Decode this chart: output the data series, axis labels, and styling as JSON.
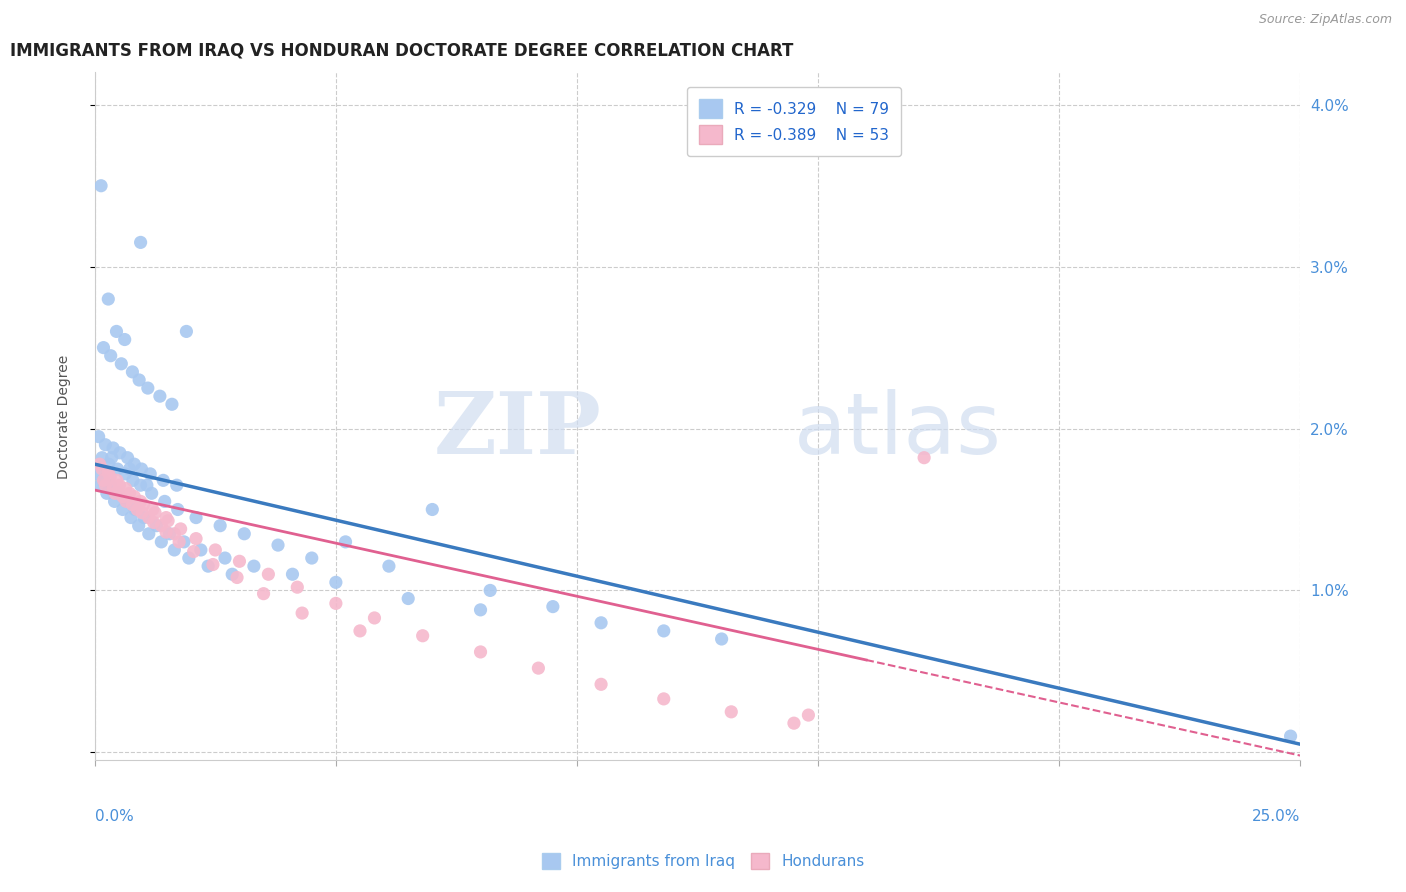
{
  "title": "IMMIGRANTS FROM IRAQ VS HONDURAN DOCTORATE DEGREE CORRELATION CHART",
  "source": "Source: ZipAtlas.com",
  "ylabel": "Doctorate Degree",
  "legend_iraq_label": "Immigrants from Iraq",
  "legend_honduran_label": "Hondurans",
  "iraq_R": "R = -0.329",
  "iraq_N": "N = 79",
  "honduran_R": "R = -0.389",
  "honduran_N": "N = 53",
  "iraq_color": "#a8c8f0",
  "iraq_line_color": "#3a7abf",
  "honduran_color": "#f5b8cc",
  "honduran_line_color": "#e06090",
  "xmin": 0.0,
  "xmax": 25.0,
  "ymin": -0.05,
  "ymax": 4.2,
  "watermark_zip": "ZIP",
  "watermark_atlas": "atlas",
  "iraq_x": [
    0.13,
    0.95,
    0.28,
    0.45,
    0.62,
    0.18,
    0.33,
    0.55,
    0.78,
    0.92,
    1.1,
    1.35,
    1.6,
    0.08,
    0.22,
    0.38,
    0.52,
    0.68,
    0.82,
    0.97,
    1.15,
    1.42,
    1.7,
    0.15,
    0.29,
    0.47,
    0.63,
    0.79,
    0.95,
    1.18,
    1.45,
    1.72,
    2.1,
    2.6,
    3.1,
    3.8,
    4.5,
    5.2,
    6.1,
    7.0,
    8.2,
    9.5,
    10.5,
    11.8,
    13.0,
    0.05,
    0.18,
    0.32,
    0.49,
    0.66,
    0.83,
    1.02,
    1.28,
    1.55,
    1.85,
    2.2,
    2.7,
    3.3,
    4.1,
    5.0,
    6.5,
    8.0,
    0.12,
    0.25,
    0.41,
    0.58,
    0.75,
    0.91,
    1.12,
    1.38,
    1.65,
    1.95,
    2.35,
    2.85,
    0.35,
    0.72,
    1.08,
    24.8,
    1.9
  ],
  "iraq_y": [
    3.5,
    3.15,
    2.8,
    2.6,
    2.55,
    2.5,
    2.45,
    2.4,
    2.35,
    2.3,
    2.25,
    2.2,
    2.15,
    1.95,
    1.9,
    1.88,
    1.85,
    1.82,
    1.78,
    1.75,
    1.72,
    1.68,
    1.65,
    1.82,
    1.78,
    1.75,
    1.72,
    1.68,
    1.65,
    1.6,
    1.55,
    1.5,
    1.45,
    1.4,
    1.35,
    1.28,
    1.2,
    1.3,
    1.15,
    1.5,
    1.0,
    0.9,
    0.8,
    0.75,
    0.7,
    1.72,
    1.68,
    1.65,
    1.6,
    1.55,
    1.5,
    1.45,
    1.4,
    1.35,
    1.3,
    1.25,
    1.2,
    1.15,
    1.1,
    1.05,
    0.95,
    0.88,
    1.65,
    1.6,
    1.55,
    1.5,
    1.45,
    1.4,
    1.35,
    1.3,
    1.25,
    1.2,
    1.15,
    1.1,
    1.82,
    1.75,
    1.65,
    0.1,
    2.6
  ],
  "honduran_x": [
    0.15,
    0.32,
    0.51,
    0.72,
    0.95,
    1.2,
    1.48,
    0.22,
    0.42,
    0.65,
    0.88,
    1.12,
    1.38,
    1.65,
    0.1,
    0.28,
    0.46,
    0.64,
    0.82,
    1.01,
    1.25,
    1.52,
    1.78,
    2.1,
    2.5,
    3.0,
    3.6,
    4.2,
    5.0,
    5.8,
    6.8,
    8.0,
    9.2,
    10.5,
    11.8,
    13.2,
    14.5,
    0.18,
    0.38,
    0.58,
    0.78,
    0.98,
    1.22,
    1.48,
    1.75,
    2.05,
    2.45,
    2.95,
    3.5,
    4.3,
    5.5,
    14.8,
    17.2
  ],
  "honduran_y": [
    1.75,
    1.7,
    1.65,
    1.6,
    1.55,
    1.5,
    1.45,
    1.65,
    1.6,
    1.55,
    1.5,
    1.45,
    1.4,
    1.35,
    1.78,
    1.73,
    1.68,
    1.63,
    1.58,
    1.53,
    1.48,
    1.43,
    1.38,
    1.32,
    1.25,
    1.18,
    1.1,
    1.02,
    0.92,
    0.83,
    0.72,
    0.62,
    0.52,
    0.42,
    0.33,
    0.25,
    0.18,
    1.68,
    1.63,
    1.58,
    1.53,
    1.48,
    1.42,
    1.36,
    1.3,
    1.24,
    1.16,
    1.08,
    0.98,
    0.86,
    0.75,
    0.23,
    1.82
  ],
  "iraq_line_start_x": 0.0,
  "iraq_line_start_y": 1.78,
  "iraq_line_end_x": 25.0,
  "iraq_line_end_y": 0.05,
  "hon_line_start_x": 0.0,
  "hon_line_start_y": 1.62,
  "hon_line_end_x": 25.0,
  "hon_line_end_y": -0.02,
  "hon_solid_end_x": 16.0
}
